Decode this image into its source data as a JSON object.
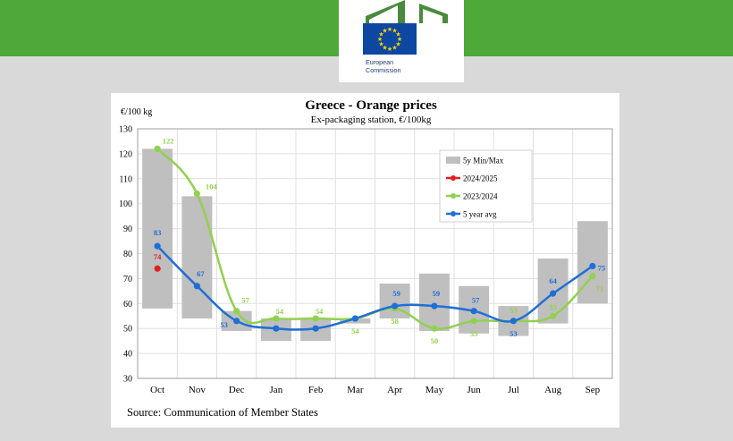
{
  "header": {
    "logo_line1": "European",
    "logo_line2": "Commission",
    "flag_icon": "eu-flag-icon",
    "brand_color": "#4ea939"
  },
  "chart_data": {
    "type": "line",
    "title": "Greece - Orange prices",
    "subtitle": "Ex-packaging station, €/100kg",
    "ylabel": "€/100 kg",
    "source": "Source: Communication of Member States",
    "ylim": [
      30,
      130
    ],
    "yticks": [
      30,
      40,
      50,
      60,
      70,
      80,
      90,
      100,
      110,
      120,
      130
    ],
    "categories": [
      "Oct",
      "Nov",
      "Dec",
      "Jan",
      "Feb",
      "Mar",
      "Apr",
      "May",
      "Jun",
      "Jul",
      "Aug",
      "Sep"
    ],
    "range": {
      "name": "5y Min/Max",
      "color": "#bfbfbf",
      "min": [
        58,
        54,
        49,
        45,
        45,
        52,
        54,
        49,
        48,
        47,
        52,
        60
      ],
      "max": [
        122,
        103,
        57,
        54,
        54,
        54,
        68,
        72,
        67,
        59,
        78,
        93
      ]
    },
    "series": [
      {
        "name": "2024/2025",
        "color": "#e02020",
        "values": [
          74,
          null,
          null,
          null,
          null,
          null,
          null,
          null,
          null,
          null,
          null,
          null
        ],
        "labels": [
          "74",
          "",
          "",
          "",
          "",
          "",
          "",
          "",
          "",
          "",
          "",
          ""
        ]
      },
      {
        "name": "2023/2024",
        "color": "#92d050",
        "values": [
          122,
          104,
          57,
          54,
          54,
          54,
          58,
          50,
          53,
          53,
          55,
          71
        ],
        "labels": [
          "122",
          "104",
          "57",
          "54",
          "54",
          "54",
          "58",
          "50",
          "53",
          "53",
          "55",
          "71"
        ]
      },
      {
        "name": "5 year avg",
        "color": "#1f6fd6",
        "values": [
          83,
          67,
          53,
          50,
          50,
          54,
          59,
          59,
          57,
          53,
          64,
          75
        ],
        "labels": [
          "83",
          "67",
          "53",
          "",
          "",
          "",
          "59",
          "59",
          "57",
          "53",
          "64",
          "75"
        ]
      }
    ],
    "grid": true,
    "legend_position": "top-right"
  }
}
